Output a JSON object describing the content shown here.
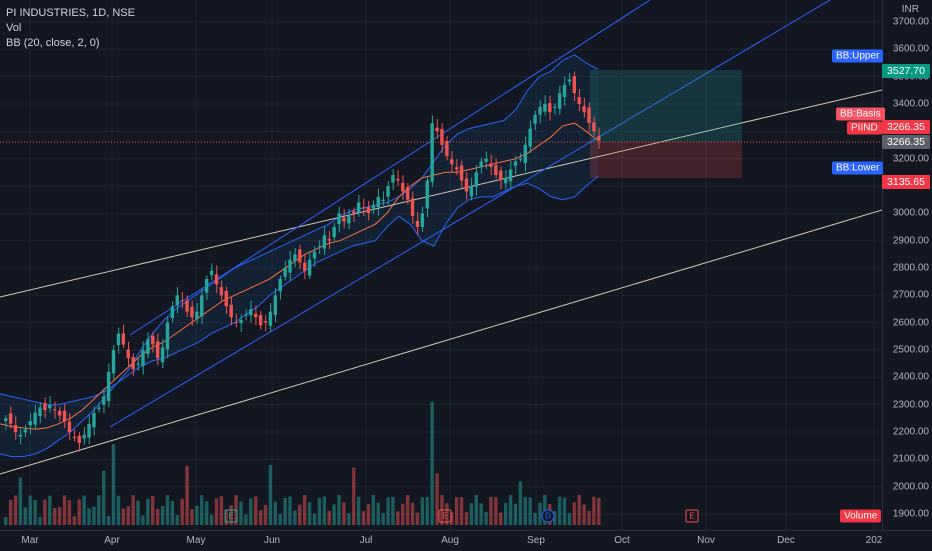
{
  "legend": {
    "symbol_line": "PI INDUSTRIES, 1D, NSE",
    "volume_label": "Vol",
    "bb_label": "BB (20, close, 2, 0)"
  },
  "y_axis": {
    "unit": "INR",
    "ticks": [
      "3700.00",
      "3600.00",
      "3500.00",
      "3400.00",
      "3300.00",
      "3200.00",
      "3100.00",
      "3000.00",
      "2900.00",
      "2800.00",
      "2700.00",
      "2600.00",
      "2500.00",
      "2400.00",
      "2300.00",
      "2200.00",
      "2100.00",
      "2000.00",
      "1900.00"
    ]
  },
  "x_axis": {
    "ticks": [
      "Mar",
      "Apr",
      "May",
      "Jun",
      "Jul",
      "Aug",
      "Sep",
      "Oct",
      "Nov",
      "Dec",
      "202"
    ]
  },
  "tags": {
    "bb_upper_label": "BB:Upper",
    "bb_upper_value": "3527.70",
    "bb_basis_label": "BB:Basis",
    "symbol_label": "PIIND",
    "last_price": "3266.35",
    "last_price_line": "3266.35",
    "bb_lower_label": "BB:Lower",
    "bb_lower_value": "3135.65",
    "volume_tag": "Volume"
  },
  "events": [
    {
      "type": "earn-green",
      "label": "E"
    },
    {
      "type": "earn",
      "label": "E"
    },
    {
      "type": "div",
      "label": "D"
    },
    {
      "type": "earn",
      "label": "E"
    }
  ],
  "colors": {
    "up": "#26a69a",
    "down": "#ef5350",
    "bb_basis": "#f7525f",
    "bb_band": "#2962ff",
    "channel": "#2962ff",
    "trend": "#d1c7b7",
    "target": "#26a69a",
    "stop": "#ef5350"
  },
  "chart_data": {
    "type": "candlestick",
    "symbol": "PI INDUSTRIES",
    "interval": "1D",
    "exchange": "NSE",
    "ylim": [
      1870,
      3760
    ],
    "x": [
      "Mar",
      "Apr",
      "May",
      "Jun",
      "Jul",
      "Aug",
      "Sep",
      "Oct",
      "Nov",
      "Dec",
      "202"
    ],
    "close_path": [
      2250,
      2230,
      2200,
      2190,
      2210,
      2240,
      2270,
      2290,
      2280,
      2300,
      2280,
      2260,
      2240,
      2200,
      2180,
      2160,
      2190,
      2230,
      2270,
      2290,
      2330,
      2420,
      2500,
      2560,
      2520,
      2470,
      2430,
      2450,
      2500,
      2540,
      2520,
      2470,
      2510,
      2600,
      2660,
      2700,
      2680,
      2640,
      2620,
      2640,
      2700,
      2760,
      2790,
      2740,
      2700,
      2660,
      2620,
      2600,
      2610,
      2630,
      2650,
      2620,
      2590,
      2600,
      2640,
      2700,
      2760,
      2800,
      2830,
      2850,
      2820,
      2790,
      2830,
      2860,
      2880,
      2920,
      2900,
      2950,
      3000,
      2970,
      2990,
      3000,
      3040,
      3020,
      3000,
      3030,
      3060,
      3050,
      3100,
      3140,
      3120,
      3080,
      3050,
      2990,
      2950,
      3000,
      3120,
      3330,
      3300,
      3250,
      3210,
      3180,
      3160,
      3120,
      3080,
      3100,
      3150,
      3190,
      3200,
      3170,
      3140,
      3120,
      3130,
      3160,
      3190,
      3200,
      3250,
      3310,
      3360,
      3390,
      3400,
      3370,
      3390,
      3440,
      3470,
      3490,
      3440,
      3400,
      3370,
      3330,
      3300,
      3266
    ],
    "bb_upper": [
      2340,
      2330,
      2320,
      2310,
      2300,
      2300,
      2310,
      2320,
      2330,
      2350,
      2380,
      2430,
      2500,
      2560,
      2610,
      2650,
      2680,
      2710,
      2740,
      2770,
      2800,
      2820,
      2840,
      2860,
      2880,
      2900,
      2920,
      2940,
      2960,
      2990,
      3010,
      3020,
      3030,
      3040,
      3060,
      3090,
      3130,
      3190,
      3250,
      3290,
      3310,
      3320,
      3330,
      3340,
      3380,
      3450,
      3500,
      3520,
      3560,
      3580,
      3550,
      3527
    ],
    "bb_basis": [
      2230,
      2220,
      2215,
      2210,
      2215,
      2230,
      2250,
      2280,
      2320,
      2360,
      2400,
      2440,
      2480,
      2510,
      2530,
      2560,
      2590,
      2620,
      2650,
      2680,
      2700,
      2720,
      2740,
      2760,
      2790,
      2820,
      2850,
      2870,
      2890,
      2900,
      2920,
      2940,
      2960,
      3000,
      3060,
      3100,
      3130,
      3140,
      3150,
      3150,
      3160,
      3170,
      3180,
      3190,
      3200,
      3220,
      3250,
      3280,
      3320,
      3330,
      3300,
      3266
    ],
    "bb_lower": [
      2120,
      2110,
      2110,
      2120,
      2140,
      2170,
      2200,
      2240,
      2280,
      2330,
      2380,
      2410,
      2440,
      2460,
      2470,
      2490,
      2510,
      2530,
      2560,
      2580,
      2600,
      2630,
      2660,
      2700,
      2730,
      2760,
      2790,
      2820,
      2840,
      2860,
      2880,
      2890,
      2900,
      2950,
      2990,
      2960,
      2900,
      2880,
      2960,
      3020,
      3050,
      3060,
      3060,
      3080,
      3100,
      3110,
      3090,
      3060,
      3050,
      3060,
      3100,
      3135
    ],
    "volume_tag": "Volume"
  }
}
